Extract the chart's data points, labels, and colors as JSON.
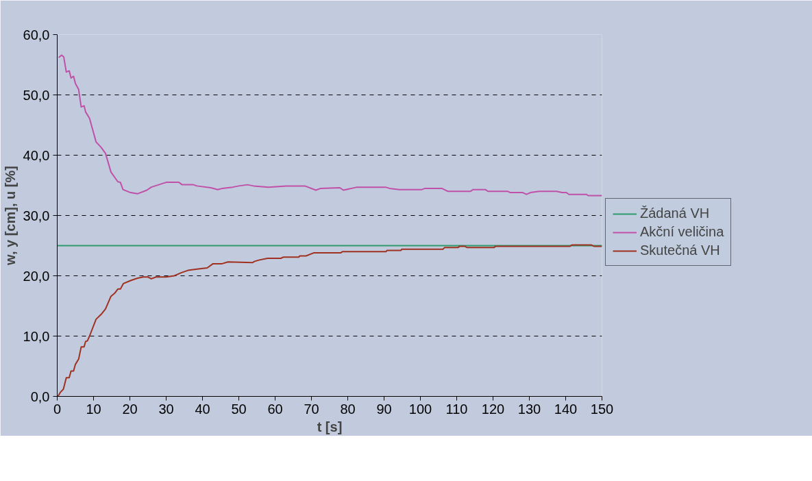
{
  "chart_data": {
    "type": "line",
    "xlabel": "t [s]",
    "ylabel": "w, y [cm], u [%]",
    "xlim": [
      0,
      150
    ],
    "ylim": [
      0,
      60
    ],
    "xticks": [
      0,
      10,
      20,
      30,
      40,
      50,
      60,
      70,
      80,
      90,
      100,
      110,
      120,
      130,
      140,
      150
    ],
    "yticks": [
      {
        "value": 0,
        "label": "0,0"
      },
      {
        "value": 10,
        "label": "10,0"
      },
      {
        "value": 20,
        "label": "20,0"
      },
      {
        "value": 30,
        "label": "30,0"
      },
      {
        "value": 40,
        "label": "40,0"
      },
      {
        "value": 50,
        "label": "50,0"
      },
      {
        "value": 60,
        "label": "60,0"
      }
    ],
    "grid": "y",
    "legend": "right",
    "marker": "none",
    "line_style": "solid",
    "series": [
      {
        "name": "Žádaná VH",
        "color": "#2e9a6c",
        "x": [
          0,
          150
        ],
        "values": [
          25,
          25
        ]
      },
      {
        "name": "Akční veličina",
        "color": "#c050a8",
        "x": [
          0.4,
          1.2,
          1.8,
          2.5,
          3.3,
          3.8,
          4.5,
          5.0,
          5.9,
          6.6,
          7.4,
          7.8,
          8.9,
          10.7,
          12.1,
          13.3,
          14.8,
          16.7,
          17.4,
          18.1,
          20.2,
          22.1,
          24.7,
          25.9,
          30.0,
          33.5,
          34.4,
          37.5,
          38.5,
          42.3,
          44.2,
          45.5,
          48.3,
          50.0,
          52.4,
          54.1,
          58.2,
          63.1,
          68.2,
          71.2,
          72.6,
          77.8,
          78.8,
          82.6,
          90.4,
          91.5,
          94.2,
          100.4,
          101.3,
          105.9,
          107.6,
          113.8,
          114.5,
          117.9,
          118.6,
          124.1,
          124.8,
          128.2,
          129.2,
          130.3,
          132.7,
          137.5,
          139.0,
          140.2,
          140.9,
          145.7,
          146.2,
          150
        ],
        "values": [
          56.2,
          56.6,
          56.3,
          53.8,
          54.0,
          52.8,
          53.1,
          51.9,
          50.9,
          48.0,
          48.2,
          47.2,
          46.1,
          42.2,
          41.3,
          40.3,
          37.2,
          35.6,
          35.5,
          34.3,
          33.8,
          33.6,
          34.2,
          34.7,
          35.5,
          35.5,
          35.1,
          35.1,
          34.9,
          34.6,
          34.3,
          34.5,
          34.7,
          34.9,
          35.1,
          34.9,
          34.7,
          34.9,
          34.9,
          34.2,
          34.5,
          34.6,
          34.2,
          34.7,
          34.7,
          34.5,
          34.3,
          34.3,
          34.5,
          34.5,
          34.0,
          34.0,
          34.3,
          34.3,
          34.0,
          34.0,
          33.8,
          33.8,
          33.5,
          33.8,
          34.0,
          34.0,
          33.8,
          33.8,
          33.5,
          33.5,
          33.3,
          33.3
        ]
      },
      {
        "name": "Skutečná VH",
        "color": "#a03020",
        "x": [
          0.2,
          0.9,
          1.7,
          2.5,
          3.3,
          3.8,
          4.5,
          5.0,
          5.9,
          6.6,
          7.4,
          7.8,
          8.3,
          8.9,
          10.7,
          12.1,
          13.3,
          14.8,
          15.8,
          16.7,
          17.4,
          18.2,
          20.2,
          22.1,
          23.7,
          25.0,
          25.9,
          27.2,
          30.0,
          32.2,
          34.1,
          36.0,
          38.5,
          41.3,
          42.9,
          45.4,
          47.0,
          53.8,
          54.4,
          55.5,
          57.9,
          61.6,
          62.3,
          66.5,
          66.8,
          68.5,
          70.6,
          78.1,
          78.5,
          90.5,
          90.8,
          94.6,
          94.9,
          106.2,
          106.7,
          110.4,
          110.8,
          112.2,
          112.8,
          120.3,
          120.7,
          141.2,
          141.7,
          147.1,
          147.8,
          150
        ],
        "values": [
          0.0,
          0.7,
          1.2,
          3.1,
          3.1,
          4.2,
          4.2,
          5.3,
          6.2,
          8.2,
          8.2,
          9.1,
          9.2,
          10.0,
          12.8,
          13.6,
          14.5,
          16.6,
          17.1,
          17.8,
          17.8,
          18.7,
          19.2,
          19.6,
          19.8,
          19.8,
          19.5,
          19.8,
          19.8,
          20.0,
          20.5,
          20.9,
          21.1,
          21.3,
          22.0,
          22.0,
          22.3,
          22.2,
          22.4,
          22.6,
          22.9,
          22.9,
          23.1,
          23.1,
          23.3,
          23.3,
          23.8,
          23.8,
          24.0,
          24.0,
          24.2,
          24.2,
          24.4,
          24.4,
          24.7,
          24.7,
          24.9,
          24.9,
          24.7,
          24.7,
          24.9,
          24.9,
          25.1,
          25.1,
          24.9,
          24.9
        ]
      }
    ]
  }
}
